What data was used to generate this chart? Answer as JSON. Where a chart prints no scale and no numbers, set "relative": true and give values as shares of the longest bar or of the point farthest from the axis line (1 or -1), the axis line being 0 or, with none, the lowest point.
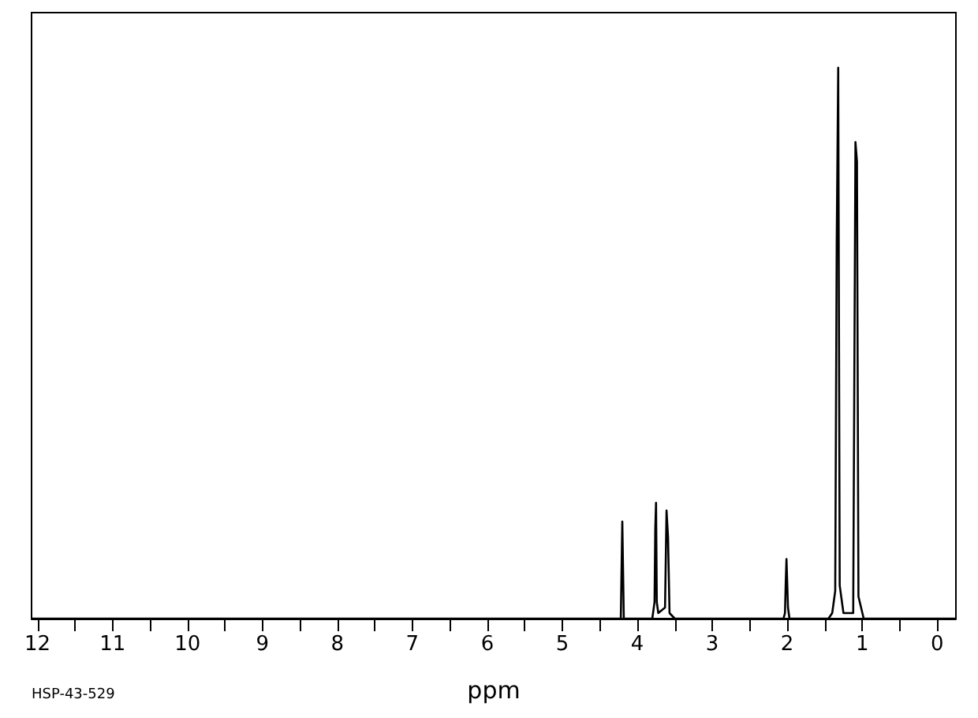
{
  "chart_data": {
    "type": "line",
    "relative": true,
    "xlabel": "ppm",
    "annotations": [
      "HSP-43-529"
    ],
    "xlim": [
      12.08,
      -0.25
    ],
    "xticks": [
      12,
      {
        "value": 11.5,
        "label": null
      },
      11,
      {
        "value": 10.5,
        "label": null
      },
      10,
      {
        "value": 9.5,
        "label": null
      },
      9,
      {
        "value": 8.5,
        "label": null
      },
      8,
      {
        "value": 7.5,
        "label": null
      },
      7,
      {
        "value": 6.5,
        "label": null
      },
      6,
      {
        "value": 5.5,
        "label": null
      },
      5,
      {
        "value": 4.5,
        "label": null
      },
      4,
      {
        "value": 3.5,
        "label": null
      },
      3,
      {
        "value": 2.5,
        "label": null
      },
      2,
      {
        "value": 1.5,
        "label": null
      },
      1,
      {
        "value": 0.5,
        "label": null
      },
      0
    ],
    "grid": false,
    "series": [
      {
        "color": "#000000",
        "x": [
          12.08,
          4.22,
          4.2,
          4.18,
          3.8,
          3.77,
          3.76,
          3.75,
          3.74,
          3.72,
          3.63,
          3.61,
          3.59,
          3.57,
          3.5,
          2.05,
          2.03,
          2.02,
          2.01,
          1.99,
          1.97,
          1.45,
          1.4,
          1.36,
          1.34,
          1.32,
          1.3,
          1.25,
          1.12,
          1.09,
          1.07,
          1.05,
          0.98,
          -0.25
        ],
        "values": [
          0,
          0,
          0.176,
          0,
          0,
          0.03,
          0.164,
          0.21,
          0.03,
          0.01,
          0.02,
          0.196,
          0.148,
          0.01,
          0,
          0,
          0.01,
          0.066,
          0.108,
          0.02,
          0,
          0,
          0.01,
          0.05,
          0.68,
          1,
          0.06,
          0.01,
          0.01,
          0.865,
          0.83,
          0.04,
          0,
          0
        ]
      }
    ]
  }
}
